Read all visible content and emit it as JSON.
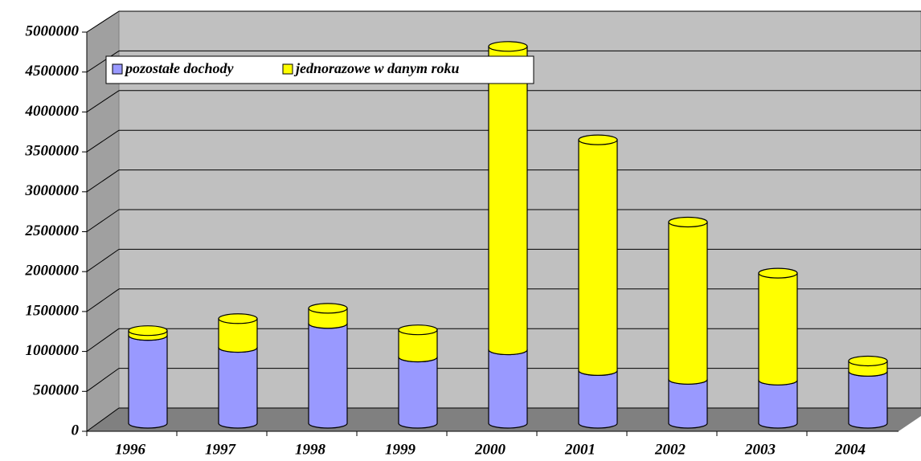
{
  "chart_data": {
    "type": "bar",
    "stacked": true,
    "categories": [
      "1996",
      "1997",
      "1998",
      "1999",
      "2000",
      "2001",
      "2002",
      "2003",
      "2004"
    ],
    "series": [
      {
        "name": "pozostałe dochody",
        "color": "#9999ff",
        "values": [
          1100000,
          950000,
          1250000,
          830000,
          920000,
          660000,
          550000,
          540000,
          650000
        ]
      },
      {
        "name": "jednorazowe w danym roku",
        "color": "#ffff00",
        "values": [
          60000,
          360000,
          190000,
          340000,
          3800000,
          2890000,
          1970000,
          1340000,
          130000
        ]
      }
    ],
    "ylim": [
      0,
      5000000
    ],
    "yticks": [
      0,
      500000,
      1000000,
      1500000,
      2000000,
      2500000,
      3000000,
      3500000,
      4000000,
      4500000,
      5000000
    ],
    "grid": true
  }
}
